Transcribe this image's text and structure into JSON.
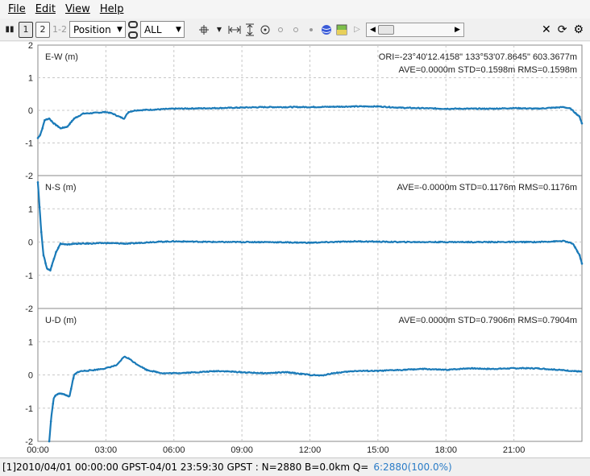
{
  "menu": [
    {
      "label": "File"
    },
    {
      "label": "Edit"
    },
    {
      "label": "View"
    },
    {
      "label": "Help"
    }
  ],
  "toolbar": {
    "pause_icon": "pause-icon",
    "btn1": "1",
    "btn2": "2",
    "btn12": "1-2",
    "plot_type": "Position",
    "quality": "ALL",
    "slider_left": "◀",
    "slider_right": "▶"
  },
  "chart_data": [
    {
      "type": "scatter",
      "title": "E-W (m)",
      "header_line1": "ORI=-23°40'12.4158\"  133°53'07.8645\"  603.3677m",
      "stats": "AVE=0.0000m STD=0.1598m RMS=0.1598m",
      "ylim": [
        -2,
        2
      ],
      "yticks": [
        "2",
        "1",
        "0",
        "-1",
        "-2"
      ],
      "color": "#1a7ab8",
      "x": [
        0,
        0.1,
        0.2,
        0.3,
        0.5,
        0.7,
        1.0,
        1.3,
        1.6,
        2.0,
        2.5,
        3.0,
        3.3,
        3.6,
        3.8,
        4.0,
        4.3,
        5.0,
        6.0,
        8.0,
        10.0,
        12.0,
        14.0,
        15.0,
        16.0,
        18.0,
        20.0,
        21.0,
        22.0,
        23.2,
        23.5,
        23.9,
        24.0
      ],
      "y": [
        -0.85,
        -0.75,
        -0.55,
        -0.3,
        -0.25,
        -0.4,
        -0.55,
        -0.5,
        -0.25,
        -0.1,
        -0.08,
        -0.05,
        -0.1,
        -0.2,
        -0.25,
        -0.05,
        0.0,
        0.02,
        0.05,
        0.07,
        0.1,
        0.1,
        0.12,
        0.12,
        0.08,
        0.05,
        0.05,
        0.07,
        0.05,
        0.1,
        0.05,
        -0.2,
        -0.4
      ]
    },
    {
      "type": "scatter",
      "title": "N-S (m)",
      "stats": "AVE=-0.0000m STD=0.1176m RMS=0.1176m",
      "ylim": [
        -2,
        2
      ],
      "yticks": [
        "2",
        "1",
        "0",
        "-1",
        "-2"
      ],
      "color": "#1a7ab8",
      "x": [
        0,
        0.05,
        0.1,
        0.15,
        0.25,
        0.4,
        0.55,
        0.8,
        1.0,
        1.3,
        1.6,
        2.0,
        3.0,
        4.0,
        5.0,
        6.0,
        8.0,
        10.0,
        12.0,
        14.0,
        16.0,
        18.0,
        20.0,
        22.0,
        23.2,
        23.6,
        23.9,
        24.0
      ],
      "y": [
        1.8,
        1.3,
        0.8,
        0.3,
        -0.4,
        -0.8,
        -0.85,
        -0.3,
        -0.05,
        -0.08,
        -0.05,
        -0.05,
        -0.03,
        -0.05,
        0.0,
        0.02,
        0.0,
        0.0,
        -0.02,
        0.02,
        0.0,
        0.0,
        0.0,
        0.0,
        0.03,
        -0.05,
        -0.4,
        -0.65
      ]
    },
    {
      "type": "scatter",
      "title": "U-D (m)",
      "stats": "AVE=0.0000m STD=0.7906m RMS=0.7904m",
      "ylim": [
        -2,
        2
      ],
      "yticks": [
        "2",
        "1",
        "0",
        "-1",
        "-2"
      ],
      "xticks": [
        "00:00",
        "03:00",
        "06:00",
        "09:00",
        "12:00",
        "15:00",
        "18:00",
        "21:00"
      ],
      "color": "#1a7ab8",
      "x": [
        0.5,
        0.55,
        0.6,
        0.7,
        0.8,
        1.0,
        1.2,
        1.4,
        1.5,
        1.6,
        1.8,
        2.0,
        2.5,
        3.0,
        3.5,
        3.8,
        4.0,
        4.3,
        4.8,
        5.5,
        6.0,
        7.0,
        8.0,
        9.0,
        10.0,
        11.0,
        12.0,
        12.5,
        13.0,
        14.0,
        15.0,
        16.0,
        17.0,
        18.0,
        19.0,
        20.0,
        21.0,
        22.0,
        23.0,
        24.0
      ],
      "y": [
        -2.0,
        -1.6,
        -1.2,
        -0.7,
        -0.6,
        -0.55,
        -0.6,
        -0.65,
        -0.3,
        0.0,
        0.1,
        0.12,
        0.15,
        0.2,
        0.3,
        0.55,
        0.5,
        0.35,
        0.15,
        0.05,
        0.05,
        0.08,
        0.12,
        0.08,
        0.05,
        0.08,
        0.0,
        -0.02,
        0.05,
        0.12,
        0.12,
        0.15,
        0.18,
        0.15,
        0.2,
        0.18,
        0.2,
        0.2,
        0.15,
        0.1
      ]
    }
  ],
  "status": {
    "text": "[1]2010/04/01 00:00:00 GPST-04/01 23:59:30 GPST : N=2880 B=0.0km Q=",
    "q_value": "6:2880(100.0%)"
  }
}
